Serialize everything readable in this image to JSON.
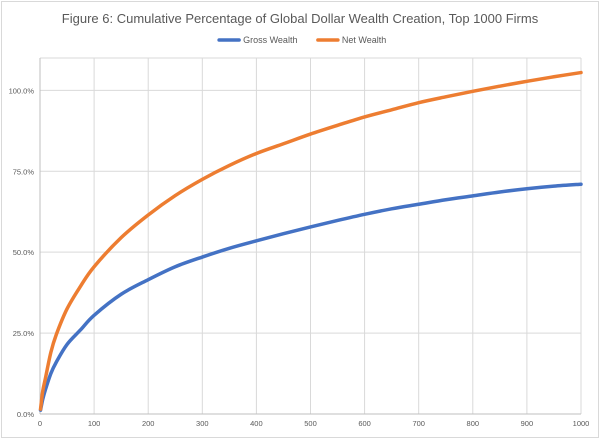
{
  "chart_data": {
    "type": "line",
    "title": "Figure 6: Cumulative Percentage of Global Dollar Wealth Creation, Top 1000 Firms",
    "xlabel": "",
    "ylabel": "",
    "xlim": [
      0,
      1000
    ],
    "ylim": [
      0,
      1.1
    ],
    "x_ticks": [
      0,
      100,
      200,
      300,
      400,
      500,
      600,
      700,
      800,
      900,
      1000
    ],
    "x_tick_labels": [
      "0",
      "100",
      "200",
      "300",
      "400",
      "500",
      "600",
      "700",
      "800",
      "900",
      "1000"
    ],
    "y_ticks": [
      0,
      0.25,
      0.5,
      0.75,
      1.0
    ],
    "y_tick_labels": [
      "0.0%",
      "25.0%",
      "50.0%",
      "75.0%",
      "100.0%"
    ],
    "grid": true,
    "legend_position": "top-center",
    "x": [
      1,
      5,
      10,
      20,
      30,
      50,
      75,
      100,
      150,
      200,
      250,
      300,
      350,
      400,
      450,
      500,
      550,
      600,
      650,
      700,
      750,
      800,
      850,
      900,
      950,
      1000
    ],
    "series": [
      {
        "name": "Gross Wealth",
        "color": "#4472c4",
        "values": [
          0.012,
          0.045,
          0.075,
          0.125,
          0.16,
          0.215,
          0.26,
          0.305,
          0.37,
          0.415,
          0.455,
          0.485,
          0.512,
          0.535,
          0.557,
          0.578,
          0.598,
          0.617,
          0.634,
          0.648,
          0.662,
          0.674,
          0.686,
          0.696,
          0.704,
          0.71
        ]
      },
      {
        "name": "Net Wealth",
        "color": "#ed7d31",
        "values": [
          0.015,
          0.07,
          0.11,
          0.19,
          0.245,
          0.325,
          0.395,
          0.455,
          0.545,
          0.615,
          0.675,
          0.725,
          0.768,
          0.805,
          0.835,
          0.865,
          0.892,
          0.918,
          0.94,
          0.962,
          0.98,
          0.997,
          1.013,
          1.028,
          1.042,
          1.055
        ]
      }
    ]
  }
}
